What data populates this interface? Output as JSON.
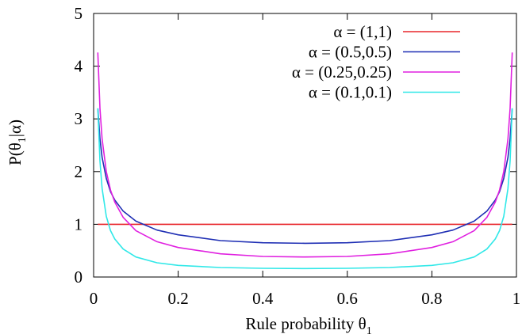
{
  "chart_data": {
    "type": "line",
    "xlabel": "Rule probability θ",
    "xlabel_sub": "1",
    "ylabel_parts": [
      "P(θ",
      "1",
      "|α)"
    ],
    "xlim": [
      0,
      1
    ],
    "ylim": [
      0,
      5
    ],
    "x_ticks": [
      "0",
      "0.2",
      "0.4",
      "0.6",
      "0.8",
      "1"
    ],
    "y_ticks": [
      "0",
      "1",
      "2",
      "3",
      "4",
      "5"
    ],
    "grid": false,
    "legend_position": "top-right",
    "series": [
      {
        "name": "α = (1,1)",
        "color": "#e8262b",
        "x": [
          0.01,
          0.1,
          0.2,
          0.3,
          0.4,
          0.5,
          0.6,
          0.7,
          0.8,
          0.9,
          0.99
        ],
        "y": [
          1,
          1,
          1,
          1,
          1,
          1,
          1,
          1,
          1,
          1,
          1
        ]
      },
      {
        "name": "α = (0.5,0.5)",
        "color": "#1f2fb4",
        "x": [
          0.01,
          0.015,
          0.02,
          0.03,
          0.04,
          0.05,
          0.07,
          0.1,
          0.15,
          0.2,
          0.3,
          0.4,
          0.5,
          0.6,
          0.7,
          0.8,
          0.85,
          0.9,
          0.93,
          0.95,
          0.96,
          0.97,
          0.98,
          0.985,
          0.99
        ],
        "y": [
          3.2,
          2.62,
          2.27,
          1.87,
          1.62,
          1.46,
          1.25,
          1.06,
          0.89,
          0.8,
          0.69,
          0.65,
          0.64,
          0.65,
          0.69,
          0.8,
          0.89,
          1.06,
          1.25,
          1.46,
          1.62,
          1.87,
          2.27,
          2.62,
          3.2
        ]
      },
      {
        "name": "α = (0.25,0.25)",
        "color": "#e020e0",
        "x": [
          0.01,
          0.015,
          0.02,
          0.03,
          0.04,
          0.05,
          0.07,
          0.1,
          0.15,
          0.2,
          0.3,
          0.4,
          0.5,
          0.6,
          0.7,
          0.8,
          0.85,
          0.9,
          0.93,
          0.95,
          0.96,
          0.97,
          0.98,
          0.985,
          0.99
        ],
        "y": [
          4.26,
          3.2,
          2.62,
          2.0,
          1.65,
          1.42,
          1.13,
          0.88,
          0.67,
          0.56,
          0.44,
          0.39,
          0.38,
          0.39,
          0.44,
          0.56,
          0.67,
          0.88,
          1.13,
          1.42,
          1.65,
          2.0,
          2.62,
          3.2,
          4.26
        ]
      },
      {
        "name": "α = (0.1,0.1)",
        "color": "#30e8e8",
        "x": [
          0.01,
          0.015,
          0.02,
          0.03,
          0.04,
          0.05,
          0.07,
          0.1,
          0.15,
          0.2,
          0.3,
          0.4,
          0.5,
          0.6,
          0.7,
          0.8,
          0.85,
          0.9,
          0.93,
          0.95,
          0.96,
          0.97,
          0.98,
          0.985,
          0.99
        ],
        "y": [
          3.2,
          2.2,
          1.68,
          1.15,
          0.88,
          0.72,
          0.53,
          0.38,
          0.27,
          0.22,
          0.18,
          0.165,
          0.16,
          0.165,
          0.18,
          0.22,
          0.27,
          0.38,
          0.53,
          0.72,
          0.88,
          1.15,
          1.68,
          2.2,
          3.2
        ]
      }
    ]
  }
}
